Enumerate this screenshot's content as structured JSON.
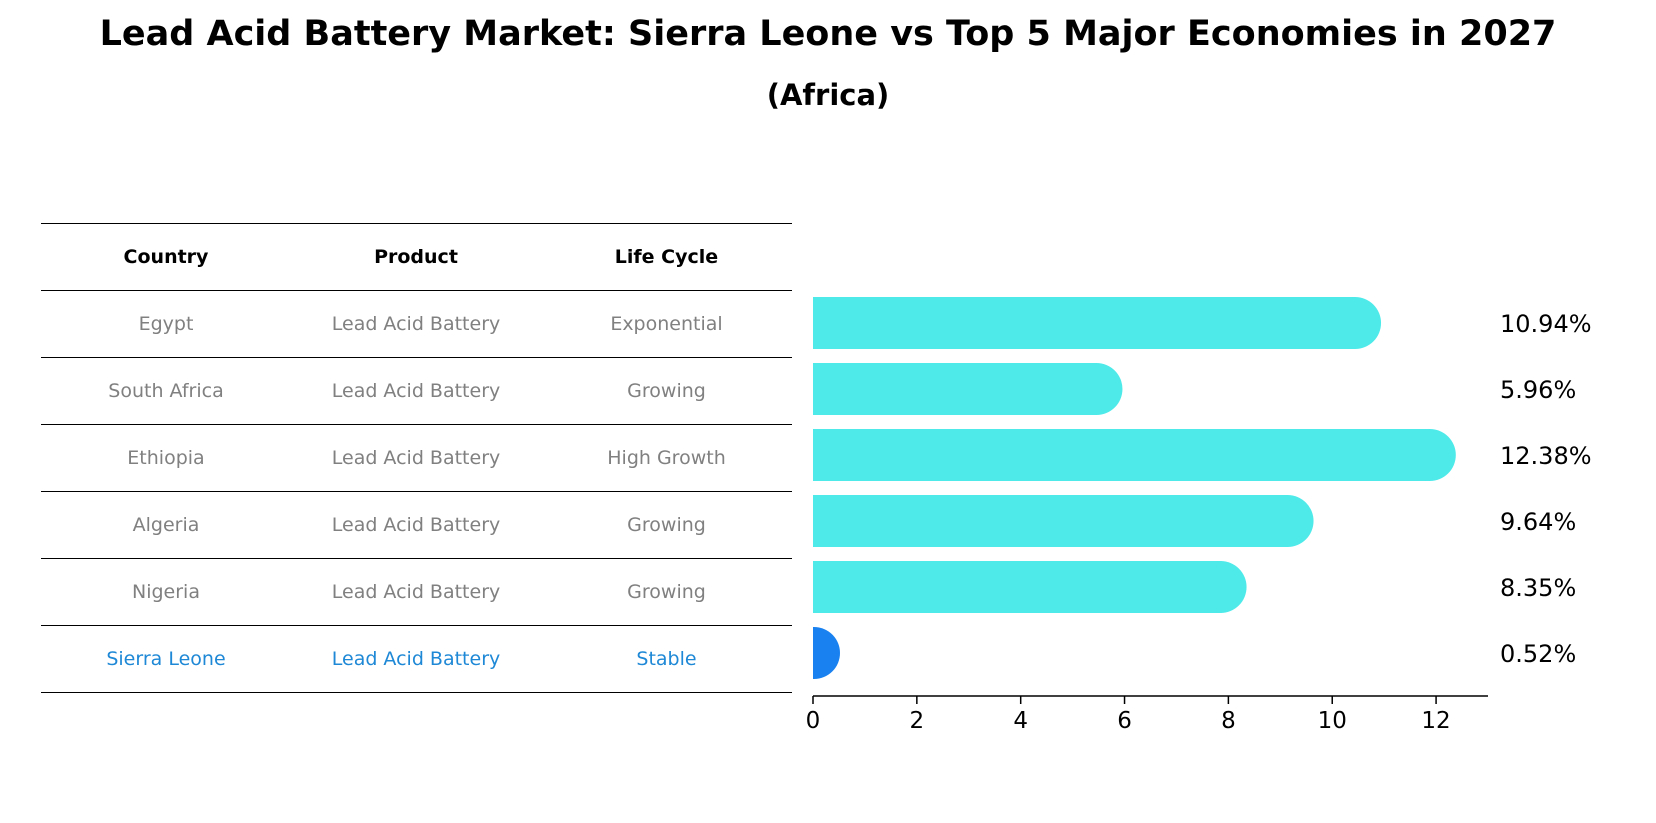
{
  "title": "Lead Acid Battery Market: Sierra Leone vs Top 5 Major Economies in 2027",
  "subtitle": "(Africa)",
  "table": {
    "headers": [
      "Country",
      "Product",
      "Life Cycle"
    ],
    "rows": [
      {
        "country": "Egypt",
        "product": "Lead Acid Battery",
        "life_cycle": "Exponential"
      },
      {
        "country": "South Africa",
        "product": "Lead Acid Battery",
        "life_cycle": "Growing"
      },
      {
        "country": "Ethiopia",
        "product": "Lead Acid Battery",
        "life_cycle": "High Growth"
      },
      {
        "country": "Algeria",
        "product": "Lead Acid Battery",
        "life_cycle": "Growing"
      },
      {
        "country": "Nigeria",
        "product": "Lead Acid Battery",
        "life_cycle": "Growing"
      },
      {
        "country": "Sierra Leone",
        "product": "Lead Acid Battery",
        "life_cycle": "Stable"
      }
    ]
  },
  "colors": {
    "bar": "#4eeaea",
    "highlight_bar": "#1a82f0",
    "highlight_text": "#1e88d6",
    "muted_text": "#808080"
  },
  "chart_data": {
    "type": "bar",
    "orientation": "horizontal",
    "categories": [
      "Egypt",
      "South Africa",
      "Ethiopia",
      "Algeria",
      "Nigeria",
      "Sierra Leone"
    ],
    "values": [
      10.94,
      5.96,
      12.38,
      9.64,
      8.35,
      0.52
    ],
    "value_labels": [
      "10.94%",
      "5.96%",
      "12.38%",
      "9.64%",
      "8.35%",
      "0.52%"
    ],
    "highlight": "Sierra Leone",
    "xlim": [
      0,
      13
    ],
    "xticks": [
      0,
      2,
      4,
      6,
      8,
      10,
      12
    ],
    "xlabel": "",
    "ylabel": "",
    "grid": false
  }
}
